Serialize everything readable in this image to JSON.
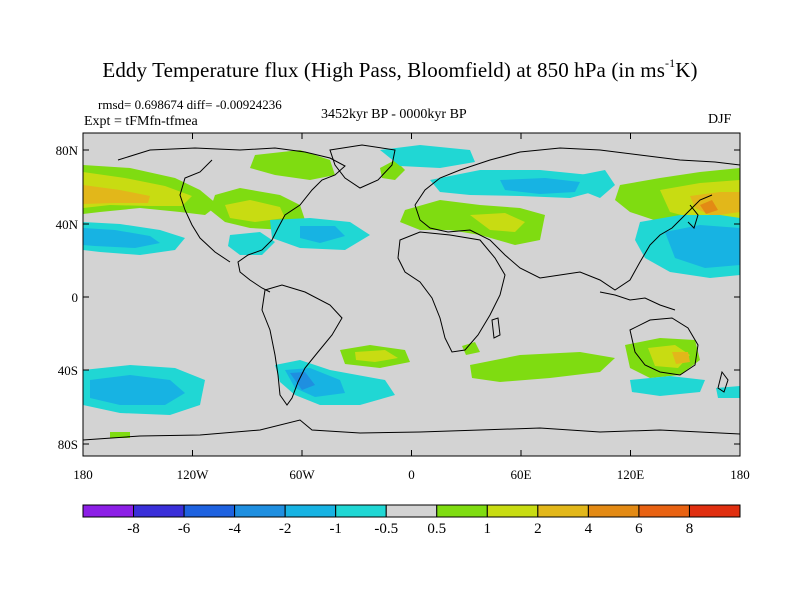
{
  "title": {
    "main": "Eddy Temperature flux (High Pass, Bloomfield) at 850 hPa (in ms",
    "sup": "-1",
    "end": "K)"
  },
  "stats_text": "rmsd= 0.698674 diff= -0.00924236",
  "expt_text": "Expt = tFMfn-tfmea",
  "period_text": "3452kyr BP - 0000kyr BP",
  "season_text": "DJF",
  "y_ticks": [
    "80N",
    "40N",
    "0",
    "40S",
    "80S"
  ],
  "x_ticks": [
    "180",
    "120W",
    "60W",
    "0",
    "60E",
    "120E",
    "180"
  ],
  "colorbar": {
    "labels": [
      "-8",
      "-6",
      "-4",
      "-2",
      "-1",
      "-0.5",
      "0.5",
      "1",
      "2",
      "4",
      "6",
      "8"
    ],
    "colors": [
      "#8c1fe6",
      "#3a2fd9",
      "#1e62e0",
      "#1f8fe0",
      "#17b3e3",
      "#20d7d4",
      "#d3d3d3",
      "#7fdc11",
      "#c8dc12",
      "#e2b71a",
      "#e38a14",
      "#e86212",
      "#e02f10"
    ]
  },
  "map_colors": {
    "background": "#d3d3d3",
    "coastline": "#000000"
  }
}
